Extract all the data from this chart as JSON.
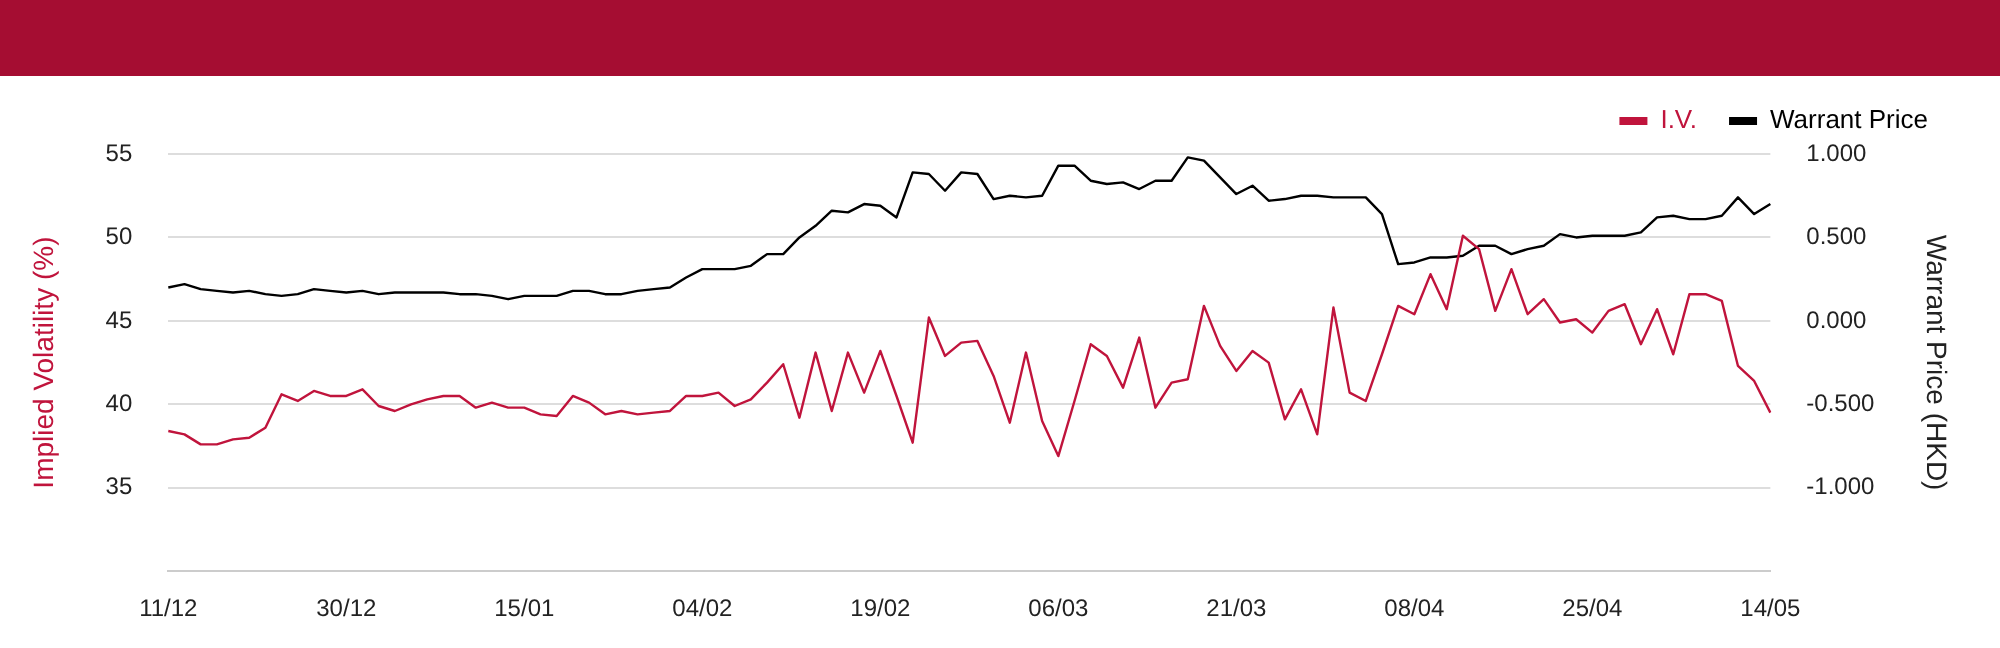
{
  "chart_data": {
    "type": "line",
    "categories": [
      "11/12",
      null,
      null,
      null,
      null,
      null,
      null,
      null,
      null,
      null,
      null,
      "30/12",
      null,
      null,
      null,
      null,
      null,
      null,
      null,
      null,
      null,
      null,
      "15/01",
      null,
      null,
      null,
      null,
      null,
      null,
      null,
      null,
      null,
      null,
      "04/02",
      null,
      null,
      null,
      null,
      null,
      null,
      null,
      null,
      null,
      null,
      "19/02",
      null,
      null,
      null,
      null,
      null,
      null,
      null,
      null,
      null,
      null,
      "06/03",
      null,
      null,
      null,
      null,
      null,
      null,
      null,
      null,
      null,
      null,
      "21/03",
      null,
      null,
      null,
      null,
      null,
      null,
      null,
      null,
      null,
      null,
      "08/04",
      null,
      null,
      null,
      null,
      null,
      null,
      null,
      null,
      null,
      null,
      "25/04",
      null,
      null,
      null,
      null,
      null,
      null,
      null,
      null,
      null,
      null,
      "14/05"
    ],
    "series": [
      {
        "name": "I.V.",
        "color": "#c0143c",
        "values": [
          38.4,
          38.2,
          37.6,
          37.6,
          37.9,
          38.0,
          38.6,
          40.6,
          40.2,
          40.8,
          40.5,
          40.5,
          40.9,
          39.9,
          39.6,
          40.0,
          40.3,
          40.5,
          40.5,
          39.8,
          40.1,
          39.8,
          39.8,
          39.4,
          39.3,
          40.5,
          40.1,
          39.4,
          39.6,
          39.4,
          39.5,
          39.6,
          40.5,
          40.5,
          40.7,
          39.9,
          40.3,
          41.3,
          42.4,
          39.2,
          43.1,
          39.6,
          43.1,
          40.7,
          43.2,
          40.5,
          37.7,
          45.2,
          42.9,
          43.7,
          43.8,
          41.7,
          38.9,
          43.1,
          39.0,
          36.9,
          40.2,
          43.6,
          42.9,
          41.0,
          44.0,
          39.8,
          41.3,
          41.5,
          45.9,
          43.5,
          42.0,
          43.2,
          42.5,
          39.1,
          40.9,
          38.2,
          45.8,
          40.7,
          40.2,
          43.0,
          45.9,
          45.4,
          47.8,
          45.7,
          50.1,
          49.3,
          45.6,
          48.1,
          45.4,
          46.3,
          44.9,
          45.1,
          44.3,
          45.6,
          46.0,
          43.6,
          45.7,
          43.0,
          46.6,
          46.6,
          46.2,
          42.3,
          41.4,
          39.5
        ]
      },
      {
        "name": "Warrant Price",
        "color": "#000000",
        "axis": "y2",
        "values": [
          0.2,
          0.22,
          0.19,
          0.18,
          0.17,
          0.18,
          0.16,
          0.15,
          0.16,
          0.19,
          0.18,
          0.17,
          0.18,
          0.16,
          0.17,
          0.17,
          0.17,
          0.17,
          0.16,
          0.16,
          0.15,
          0.13,
          0.15,
          0.15,
          0.15,
          0.18,
          0.18,
          0.16,
          0.16,
          0.18,
          0.19,
          0.2,
          0.26,
          0.31,
          0.31,
          0.31,
          0.33,
          0.4,
          0.4,
          0.5,
          0.57,
          0.66,
          0.65,
          0.7,
          0.69,
          0.62,
          0.89,
          0.88,
          0.78,
          0.89,
          0.88,
          0.73,
          0.75,
          0.74,
          0.75,
          0.93,
          0.93,
          0.84,
          0.82,
          0.83,
          0.79,
          0.84,
          0.84,
          0.98,
          0.96,
          0.86,
          0.76,
          0.81,
          0.72,
          0.73,
          0.75,
          0.75,
          0.74,
          0.74,
          0.74,
          0.64,
          0.34,
          0.35,
          0.38,
          0.38,
          0.39,
          0.45,
          0.45,
          0.4,
          0.43,
          0.45,
          0.52,
          0.5,
          0.51,
          0.51,
          0.51,
          0.53,
          0.62,
          0.63,
          0.61,
          0.61,
          0.63,
          0.74,
          0.64,
          0.7
        ]
      }
    ],
    "ylabel": "Implied Volatility (%)",
    "y2label": "Warrant Price (HKD)",
    "ylim": [
      30,
      55
    ],
    "yticks": [
      35,
      40,
      45,
      50,
      55
    ],
    "y2lim": [
      -1.5,
      1.0
    ],
    "y2ticks": [
      {
        "value": -1,
        "label": "-1.000"
      },
      {
        "value": -0.5,
        "label": "-0.500"
      },
      {
        "value": 0,
        "label": "0.000"
      },
      {
        "value": 0.5,
        "label": "0.500"
      },
      {
        "value": 1,
        "label": "1.000"
      }
    ],
    "grid": "y",
    "legend": "top right",
    "marker": "none",
    "line_style": "solid"
  }
}
